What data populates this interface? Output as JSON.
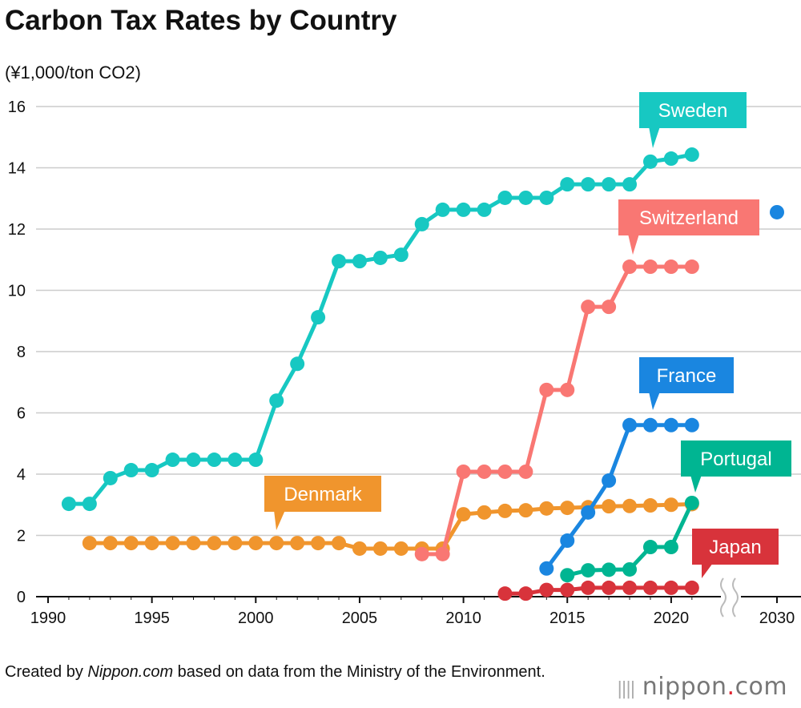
{
  "chart_data": {
    "type": "line",
    "title": "Carbon Tax Rates by Country",
    "ylabel": "(¥1,000/ton CO2)",
    "xlabel": "",
    "ylim": [
      0,
      16
    ],
    "yticks": [
      "0",
      "2",
      "4",
      "6",
      "8",
      "10",
      "12",
      "14",
      "16"
    ],
    "xticks": [
      "1990",
      "1995",
      "2000",
      "2005",
      "2010",
      "2015",
      "2020",
      "2030"
    ],
    "grid": true,
    "axis_break": "between 2021 and 2030",
    "series": [
      {
        "name": "Sweden",
        "color": "#17c8c2",
        "x": [
          1991,
          1992,
          1993,
          1994,
          1995,
          1996,
          1997,
          1998,
          1999,
          2000,
          2001,
          2002,
          2003,
          2004,
          2005,
          2006,
          2007,
          2008,
          2009,
          2010,
          2011,
          2012,
          2013,
          2014,
          2015,
          2016,
          2017,
          2018,
          2019,
          2020,
          2021
        ],
        "y": [
          3.03,
          3.03,
          3.87,
          4.13,
          4.13,
          4.47,
          4.47,
          4.47,
          4.47,
          4.47,
          6.4,
          7.6,
          9.12,
          10.95,
          10.95,
          11.06,
          11.16,
          12.16,
          12.63,
          12.63,
          12.63,
          13.02,
          13.02,
          13.02,
          13.46,
          13.46,
          13.46,
          13.46,
          14.2,
          14.3,
          14.43
        ]
      },
      {
        "name": "Switzerland",
        "color": "#f97773",
        "x": [
          2008,
          2009,
          2010,
          2011,
          2012,
          2013,
          2014,
          2015,
          2016,
          2017,
          2018,
          2019,
          2020,
          2021
        ],
        "y": [
          1.39,
          1.39,
          4.08,
          4.08,
          4.08,
          4.08,
          6.75,
          6.75,
          9.46,
          9.46,
          10.77,
          10.77,
          10.77,
          10.77
        ]
      },
      {
        "name": "Denmark",
        "color": "#f0952d",
        "x": [
          1992,
          1993,
          1994,
          1995,
          1996,
          1997,
          1998,
          1999,
          2000,
          2001,
          2002,
          2003,
          2004,
          2005,
          2006,
          2007,
          2008,
          2009,
          2010,
          2011,
          2012,
          2013,
          2014,
          2015,
          2016,
          2017,
          2018,
          2019,
          2020,
          2021
        ],
        "y": [
          1.75,
          1.75,
          1.75,
          1.75,
          1.75,
          1.75,
          1.75,
          1.75,
          1.75,
          1.75,
          1.75,
          1.75,
          1.75,
          1.57,
          1.57,
          1.57,
          1.57,
          1.57,
          2.69,
          2.75,
          2.8,
          2.82,
          2.88,
          2.9,
          2.92,
          2.95,
          2.96,
          2.98,
          3.0,
          3.02
        ]
      },
      {
        "name": "France",
        "color": "#1a86e0",
        "x": [
          2014,
          2015,
          2016,
          2017,
          2018,
          2019,
          2020,
          2021
        ],
        "y": [
          0.92,
          1.83,
          2.75,
          3.79,
          5.6,
          5.6,
          5.6,
          5.6
        ],
        "extra": {
          "x": 2030,
          "y": 12.55
        }
      },
      {
        "name": "Portugal",
        "color": "#00b592",
        "x": [
          2015,
          2016,
          2017,
          2018,
          2019,
          2020,
          2021
        ],
        "y": [
          0.7,
          0.86,
          0.88,
          0.89,
          1.62,
          1.62,
          3.06
        ]
      },
      {
        "name": "Japan",
        "color": "#d8333b",
        "x": [
          2012,
          2013,
          2014,
          2015,
          2016,
          2017,
          2018,
          2019,
          2020,
          2021
        ],
        "y": [
          0.1,
          0.1,
          0.22,
          0.22,
          0.29,
          0.29,
          0.29,
          0.29,
          0.29,
          0.29
        ]
      }
    ]
  },
  "footer": {
    "prefix": "Created by ",
    "source": "Nippon.com",
    "suffix": " based on data from the Ministry of the Environment."
  },
  "logo": {
    "name": "nippon",
    "dot": ".",
    "tld": "com"
  }
}
